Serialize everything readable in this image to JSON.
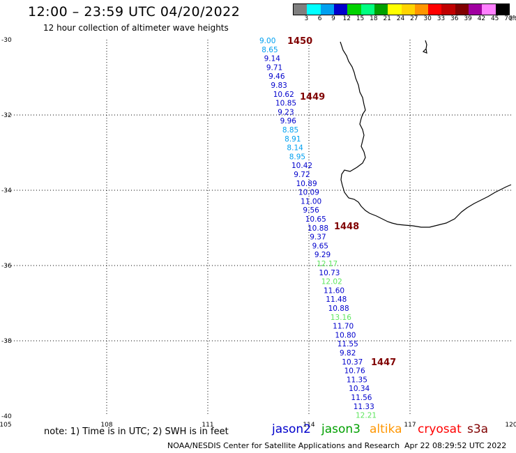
{
  "header": {
    "title": "12:00 – 23:59 UTC 04/20/2022",
    "subtitle": "12 hour collection of altimeter wave heights"
  },
  "color_scale": {
    "unit": "(ft)",
    "ticks": [
      "3",
      "6",
      "9",
      "12",
      "15",
      "18",
      "21",
      "24",
      "27",
      "30",
      "33",
      "36",
      "39",
      "42",
      "45",
      "70"
    ],
    "colors": [
      "#7f7f7f",
      "#00ffff",
      "#00a0f0",
      "#0000cc",
      "#00d200",
      "#00ff80",
      "#00a000",
      "#ffff00",
      "#ffd400",
      "#ff9600",
      "#ff0000",
      "#c00000",
      "#800000",
      "#a000a0",
      "#ff80ff",
      "#000000"
    ]
  },
  "map": {
    "lon_labels": [
      "105",
      "108",
      "111",
      "114",
      "117",
      "120"
    ],
    "lat_labels": [
      "-30",
      "-32",
      "-34",
      "-36",
      "-38",
      "-40"
    ],
    "wave_points": [
      {
        "value": "9.00",
        "color": "#00a0f0"
      },
      {
        "value": "8.65",
        "color": "#00a0f0"
      },
      {
        "value": "9.14",
        "color": "#0000cc"
      },
      {
        "value": "9.71",
        "color": "#0000cc"
      },
      {
        "value": "9.46",
        "color": "#0000cc"
      },
      {
        "value": "9.83",
        "color": "#0000cc"
      },
      {
        "value": "10.62",
        "color": "#0000cc"
      },
      {
        "value": "10.85",
        "color": "#0000cc"
      },
      {
        "value": "9.23",
        "color": "#0000cc"
      },
      {
        "value": "9.96",
        "color": "#0000cc"
      },
      {
        "value": "8.85",
        "color": "#00a0f0"
      },
      {
        "value": "8.91",
        "color": "#00a0f0"
      },
      {
        "value": "8.14",
        "color": "#00a0f0"
      },
      {
        "value": "8.95",
        "color": "#00a0f0"
      },
      {
        "value": "10.42",
        "color": "#0000cc"
      },
      {
        "value": "9.72",
        "color": "#0000cc"
      },
      {
        "value": "10.89",
        "color": "#0000cc"
      },
      {
        "value": "10.09",
        "color": "#0000cc"
      },
      {
        "value": "11.00",
        "color": "#0000cc"
      },
      {
        "value": "9.56",
        "color": "#0000cc"
      },
      {
        "value": "10.65",
        "color": "#0000cc"
      },
      {
        "value": "10.88",
        "color": "#0000cc"
      },
      {
        "value": "9.37",
        "color": "#0000cc"
      },
      {
        "value": "9.65",
        "color": "#0000cc"
      },
      {
        "value": "9.29",
        "color": "#0000cc"
      },
      {
        "value": "12.17",
        "color": "#5ee65e"
      },
      {
        "value": "10.73",
        "color": "#0000cc"
      },
      {
        "value": "12.02",
        "color": "#5ee65e"
      },
      {
        "value": "11.60",
        "color": "#0000cc"
      },
      {
        "value": "11.48",
        "color": "#0000cc"
      },
      {
        "value": "10.88",
        "color": "#0000cc"
      },
      {
        "value": "13.16",
        "color": "#5ee65e"
      },
      {
        "value": "11.70",
        "color": "#0000cc"
      },
      {
        "value": "10.80",
        "color": "#0000cc"
      },
      {
        "value": "11.55",
        "color": "#0000cc"
      },
      {
        "value": "9.82",
        "color": "#0000cc"
      },
      {
        "value": "10.37",
        "color": "#0000cc"
      },
      {
        "value": "10.76",
        "color": "#0000cc"
      },
      {
        "value": "11.35",
        "color": "#0000cc"
      },
      {
        "value": "10.34",
        "color": "#0000cc"
      },
      {
        "value": "11.56",
        "color": "#0000cc"
      },
      {
        "value": "11.33",
        "color": "#0000cc"
      },
      {
        "value": "12.21",
        "color": "#5ee65e"
      }
    ],
    "time_marks": [
      {
        "label": "1450",
        "color": "#800000"
      },
      {
        "label": "1449",
        "color": "#800000"
      },
      {
        "label": "1448",
        "color": "#800000"
      },
      {
        "label": "1447",
        "color": "#800000"
      }
    ]
  },
  "footer": {
    "note": "note:  1) Time is in UTC;  2) SWH is in feet",
    "satellites": [
      {
        "name": "jason2",
        "color": "#0000cc"
      },
      {
        "name": "jason3",
        "color": "#00a000"
      },
      {
        "name": "altika",
        "color": "#ff9600"
      },
      {
        "name": "cryosat",
        "color": "#ff0000"
      },
      {
        "name": "s3a",
        "color": "#800000"
      }
    ],
    "credit": "NOAA/NESDIS Center for Satellite Applications and Research",
    "timestamp": "Apr 22 08:29:52 UTC 2022"
  }
}
